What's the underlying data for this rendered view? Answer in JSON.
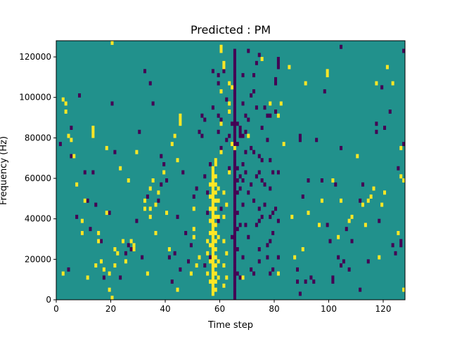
{
  "chart_data": {
    "type": "heatmap",
    "title": "Predicted : PM",
    "xlabel": "Time step",
    "ylabel": "Frequency (Hz)",
    "xlim": [
      0,
      128
    ],
    "ylim": [
      0,
      128000
    ],
    "xticks": [
      0,
      20,
      40,
      60,
      80,
      100,
      120
    ],
    "yticks": [
      0,
      20000,
      40000,
      60000,
      80000,
      100000,
      120000
    ],
    "n_cols": 128,
    "n_rows": 64,
    "colormap": "viridis",
    "colors": {
      "background": "#21918c",
      "high": "#fde725",
      "low": "#440154"
    },
    "high_cells": [
      [
        57,
        1
      ],
      [
        57,
        2
      ],
      [
        57,
        3
      ],
      [
        57,
        4
      ],
      [
        57,
        5
      ],
      [
        57,
        6
      ],
      [
        57,
        7
      ],
      [
        57,
        8
      ],
      [
        57,
        9
      ],
      [
        57,
        10
      ],
      [
        57,
        11
      ],
      [
        57,
        12
      ],
      [
        57,
        13
      ],
      [
        57,
        14
      ],
      [
        57,
        15
      ],
      [
        57,
        16
      ],
      [
        57,
        17
      ],
      [
        57,
        18
      ],
      [
        57,
        19
      ],
      [
        57,
        20
      ],
      [
        57,
        21
      ],
      [
        57,
        22
      ],
      [
        57,
        23
      ],
      [
        57,
        24
      ],
      [
        57,
        25
      ],
      [
        57,
        26
      ],
      [
        57,
        27
      ],
      [
        57,
        28
      ],
      [
        57,
        29
      ],
      [
        57,
        30
      ],
      [
        57,
        31
      ],
      [
        57,
        32
      ],
      [
        58,
        2
      ],
      [
        58,
        4
      ],
      [
        58,
        6
      ],
      [
        58,
        8
      ],
      [
        58,
        10
      ],
      [
        58,
        12
      ],
      [
        58,
        14
      ],
      [
        58,
        16
      ],
      [
        58,
        18
      ],
      [
        58,
        20
      ],
      [
        58,
        22
      ],
      [
        58,
        24
      ],
      [
        58,
        26
      ],
      [
        58,
        28
      ],
      [
        58,
        30
      ],
      [
        58,
        33
      ],
      [
        58,
        34
      ],
      [
        56,
        4
      ],
      [
        56,
        9
      ],
      [
        56,
        13
      ],
      [
        56,
        16
      ],
      [
        56,
        19
      ],
      [
        56,
        22
      ],
      [
        56,
        25
      ],
      [
        56,
        28
      ],
      [
        55,
        6
      ],
      [
        55,
        11
      ],
      [
        55,
        14
      ],
      [
        59,
        5
      ],
      [
        59,
        9
      ],
      [
        59,
        15
      ],
      [
        59,
        20
      ],
      [
        59,
        24
      ],
      [
        59,
        27
      ],
      [
        61,
        3
      ],
      [
        61,
        8
      ],
      [
        61,
        14
      ],
      [
        61,
        20
      ],
      [
        61,
        26
      ],
      [
        62,
        5
      ],
      [
        62,
        11
      ],
      [
        62,
        23
      ],
      [
        63,
        46
      ],
      [
        63,
        48
      ],
      [
        60,
        36
      ],
      [
        60,
        43
      ],
      [
        60,
        51
      ],
      [
        64,
        38
      ],
      [
        64,
        52
      ],
      [
        63,
        53
      ],
      [
        2,
        6
      ],
      [
        2,
        49
      ],
      [
        3,
        46
      ],
      [
        3,
        48
      ],
      [
        4,
        40
      ],
      [
        5,
        39
      ],
      [
        6,
        35
      ],
      [
        7,
        28
      ],
      [
        9,
        16
      ],
      [
        9,
        19
      ],
      [
        10,
        24
      ],
      [
        11,
        5
      ],
      [
        13,
        40
      ],
      [
        13,
        41
      ],
      [
        13,
        42
      ],
      [
        14,
        8
      ],
      [
        15,
        14
      ],
      [
        15,
        16
      ],
      [
        16,
        9
      ],
      [
        17,
        7
      ],
      [
        18,
        21
      ],
      [
        18,
        37
      ],
      [
        19,
        2
      ],
      [
        19,
        6
      ],
      [
        20,
        0
      ],
      [
        20,
        63
      ],
      [
        21,
        8
      ],
      [
        21,
        12
      ],
      [
        22,
        11
      ],
      [
        23,
        32
      ],
      [
        24,
        14
      ],
      [
        25,
        9
      ],
      [
        26,
        29
      ],
      [
        27,
        14
      ],
      [
        28,
        12
      ],
      [
        28,
        13
      ],
      [
        29,
        36
      ],
      [
        32,
        22
      ],
      [
        32,
        24
      ],
      [
        33,
        6
      ],
      [
        34,
        20
      ],
      [
        34,
        22
      ],
      [
        34,
        27
      ],
      [
        35,
        29
      ],
      [
        36,
        16
      ],
      [
        36,
        23
      ],
      [
        37,
        26
      ],
      [
        39,
        31
      ],
      [
        40,
        21
      ],
      [
        41,
        12
      ],
      [
        42,
        38
      ],
      [
        43,
        40
      ],
      [
        44,
        2
      ],
      [
        44,
        34
      ],
      [
        45,
        43
      ],
      [
        45,
        44
      ],
      [
        45,
        45
      ],
      [
        49,
        6
      ],
      [
        50,
        15
      ],
      [
        50,
        17
      ],
      [
        50,
        22
      ],
      [
        51,
        8
      ],
      [
        52,
        10
      ],
      [
        60,
        61
      ],
      [
        60,
        62
      ],
      [
        61,
        57
      ],
      [
        61,
        58
      ],
      [
        63,
        31
      ],
      [
        65,
        37
      ],
      [
        68,
        5
      ],
      [
        70,
        40
      ],
      [
        75,
        59
      ],
      [
        78,
        48
      ],
      [
        81,
        45
      ],
      [
        81,
        6
      ],
      [
        82,
        48
      ],
      [
        83,
        38
      ],
      [
        85,
        57
      ],
      [
        86,
        20
      ],
      [
        87,
        10
      ],
      [
        90,
        12
      ],
      [
        91,
        53
      ],
      [
        92,
        21
      ],
      [
        96,
        18
      ],
      [
        97,
        24
      ],
      [
        99,
        55
      ],
      [
        99,
        56
      ],
      [
        101,
        29
      ],
      [
        103,
        15
      ],
      [
        104,
        24
      ],
      [
        107,
        19
      ],
      [
        108,
        20
      ],
      [
        110,
        35
      ],
      [
        112,
        23
      ],
      [
        113,
        18
      ],
      [
        114,
        24
      ],
      [
        115,
        25
      ],
      [
        116,
        27
      ],
      [
        117,
        53
      ],
      [
        118,
        10
      ],
      [
        119,
        23
      ],
      [
        120,
        26
      ],
      [
        121,
        57
      ],
      [
        123,
        53
      ],
      [
        127,
        29
      ],
      [
        127,
        2
      ],
      [
        126,
        37
      ],
      [
        126,
        30
      ],
      [
        125,
        16
      ]
    ],
    "low_cells": [
      [
        65,
        0
      ],
      [
        65,
        1
      ],
      [
        65,
        2
      ],
      [
        65,
        3
      ],
      [
        65,
        4
      ],
      [
        65,
        5
      ],
      [
        65,
        6
      ],
      [
        65,
        7
      ],
      [
        65,
        8
      ],
      [
        65,
        9
      ],
      [
        65,
        10
      ],
      [
        65,
        11
      ],
      [
        65,
        12
      ],
      [
        65,
        13
      ],
      [
        65,
        14
      ],
      [
        65,
        15
      ],
      [
        65,
        16
      ],
      [
        65,
        17
      ],
      [
        65,
        18
      ],
      [
        65,
        19
      ],
      [
        65,
        20
      ],
      [
        65,
        21
      ],
      [
        65,
        22
      ],
      [
        65,
        23
      ],
      [
        65,
        24
      ],
      [
        65,
        25
      ],
      [
        65,
        26
      ],
      [
        65,
        27
      ],
      [
        65,
        28
      ],
      [
        65,
        29
      ],
      [
        65,
        30
      ],
      [
        65,
        31
      ],
      [
        65,
        32
      ],
      [
        65,
        33
      ],
      [
        65,
        34
      ],
      [
        65,
        35
      ],
      [
        65,
        36
      ],
      [
        65,
        37
      ],
      [
        65,
        38
      ],
      [
        65,
        39
      ],
      [
        65,
        40
      ],
      [
        65,
        41
      ],
      [
        65,
        42
      ],
      [
        65,
        43
      ],
      [
        65,
        44
      ],
      [
        65,
        45
      ],
      [
        65,
        46
      ],
      [
        65,
        47
      ],
      [
        65,
        48
      ],
      [
        65,
        49
      ],
      [
        65,
        50
      ],
      [
        65,
        51
      ],
      [
        65,
        52
      ],
      [
        65,
        53
      ],
      [
        65,
        54
      ],
      [
        65,
        55
      ],
      [
        65,
        56
      ],
      [
        65,
        57
      ],
      [
        65,
        58
      ],
      [
        65,
        59
      ],
      [
        65,
        60
      ],
      [
        65,
        61
      ],
      [
        66,
        6
      ],
      [
        66,
        12
      ],
      [
        66,
        17
      ],
      [
        66,
        21
      ],
      [
        66,
        26
      ],
      [
        66,
        29
      ],
      [
        66,
        32
      ],
      [
        66,
        38
      ],
      [
        66,
        43
      ],
      [
        67,
        5
      ],
      [
        67,
        18
      ],
      [
        67,
        27
      ],
      [
        67,
        30
      ],
      [
        67,
        40
      ],
      [
        67,
        41
      ],
      [
        67,
        42
      ],
      [
        68,
        10
      ],
      [
        68,
        23
      ],
      [
        68,
        29
      ],
      [
        68,
        33
      ],
      [
        68,
        40
      ],
      [
        68,
        48
      ],
      [
        68,
        55
      ],
      [
        69,
        18
      ],
      [
        69,
        31
      ],
      [
        69,
        36
      ],
      [
        69,
        41
      ],
      [
        69,
        45
      ],
      [
        70,
        15
      ],
      [
        70,
        26
      ],
      [
        70,
        44
      ],
      [
        70,
        61
      ],
      [
        71,
        7
      ],
      [
        71,
        28
      ],
      [
        71,
        37
      ],
      [
        71,
        50
      ],
      [
        72,
        6
      ],
      [
        72,
        24
      ],
      [
        72,
        36
      ],
      [
        72,
        51
      ],
      [
        72,
        55
      ],
      [
        73,
        18
      ],
      [
        73,
        30
      ],
      [
        73,
        47
      ],
      [
        73,
        58
      ],
      [
        74,
        9
      ],
      [
        74,
        12
      ],
      [
        74,
        19
      ],
      [
        74,
        22
      ],
      [
        74,
        31
      ],
      [
        74,
        35
      ],
      [
        74,
        60
      ],
      [
        75,
        20
      ],
      [
        75,
        29
      ],
      [
        75,
        34
      ],
      [
        75,
        42
      ],
      [
        76,
        23
      ],
      [
        76,
        28
      ],
      [
        76,
        47
      ],
      [
        77,
        10
      ],
      [
        77,
        13
      ],
      [
        77,
        39
      ],
      [
        77,
        45
      ],
      [
        78,
        6
      ],
      [
        78,
        14
      ],
      [
        78,
        20
      ],
      [
        78,
        27
      ],
      [
        78,
        34
      ],
      [
        78,
        45
      ],
      [
        79,
        7
      ],
      [
        79,
        16
      ],
      [
        79,
        21
      ],
      [
        79,
        31
      ],
      [
        80,
        22
      ],
      [
        80,
        46
      ],
      [
        80,
        53
      ],
      [
        80,
        54
      ],
      [
        81,
        10
      ],
      [
        81,
        19
      ],
      [
        81,
        31
      ],
      [
        81,
        57
      ],
      [
        81,
        58
      ],
      [
        81,
        59
      ],
      [
        59,
        19
      ],
      [
        59,
        41
      ],
      [
        59,
        45
      ],
      [
        59,
        53
      ],
      [
        59,
        55
      ],
      [
        60,
        22
      ],
      [
        60,
        37
      ],
      [
        60,
        44
      ],
      [
        61,
        56
      ],
      [
        62,
        49
      ],
      [
        62,
        39
      ],
      [
        63,
        40
      ],
      [
        63,
        32
      ],
      [
        64,
        15
      ],
      [
        64,
        43
      ],
      [
        57,
        47
      ],
      [
        57,
        56
      ],
      [
        56,
        10
      ],
      [
        56,
        33
      ],
      [
        55,
        21
      ],
      [
        55,
        26
      ],
      [
        54,
        44
      ],
      [
        54,
        8
      ],
      [
        53,
        40
      ],
      [
        88,
        4
      ],
      [
        88,
        7
      ],
      [
        89,
        1
      ],
      [
        89,
        39
      ],
      [
        89,
        40
      ],
      [
        90,
        25
      ],
      [
        91,
        4
      ],
      [
        92,
        29
      ],
      [
        93,
        5
      ],
      [
        94,
        4
      ],
      [
        95,
        39
      ],
      [
        97,
        29
      ],
      [
        98,
        51
      ],
      [
        99,
        18
      ],
      [
        100,
        14
      ],
      [
        101,
        4
      ],
      [
        101,
        5
      ],
      [
        102,
        28
      ],
      [
        103,
        10
      ],
      [
        104,
        8
      ],
      [
        104,
        37
      ],
      [
        104,
        62
      ],
      [
        105,
        9
      ],
      [
        106,
        17
      ],
      [
        107,
        7
      ],
      [
        108,
        14
      ],
      [
        111,
        24
      ],
      [
        111,
        2
      ],
      [
        112,
        28
      ],
      [
        114,
        9
      ],
      [
        116,
        27
      ],
      [
        117,
        43
      ],
      [
        117,
        41
      ],
      [
        118,
        19
      ],
      [
        119,
        52
      ],
      [
        120,
        42
      ],
      [
        122,
        46
      ],
      [
        123,
        13
      ],
      [
        124,
        11
      ],
      [
        125,
        32
      ],
      [
        126,
        14
      ],
      [
        126,
        13
      ],
      [
        127,
        38
      ],
      [
        127,
        61
      ],
      [
        1,
        38
      ],
      [
        4,
        7
      ],
      [
        5,
        35
      ],
      [
        5,
        42
      ],
      [
        7,
        20
      ],
      [
        8,
        50
      ],
      [
        9,
        16
      ],
      [
        10,
        31
      ],
      [
        11,
        24
      ],
      [
        12,
        17
      ],
      [
        13,
        31
      ],
      [
        14,
        23
      ],
      [
        16,
        14
      ],
      [
        17,
        5
      ],
      [
        19,
        21
      ],
      [
        20,
        48
      ],
      [
        21,
        36
      ],
      [
        23,
        5
      ],
      [
        25,
        11
      ],
      [
        26,
        13
      ],
      [
        27,
        12
      ],
      [
        29,
        19
      ],
      [
        30,
        41
      ],
      [
        31,
        10
      ],
      [
        32,
        56
      ],
      [
        33,
        25
      ],
      [
        34,
        53
      ],
      [
        35,
        48
      ],
      [
        37,
        24
      ],
      [
        38,
        28
      ],
      [
        38,
        35
      ],
      [
        39,
        33
      ],
      [
        40,
        29
      ],
      [
        41,
        10
      ],
      [
        42,
        4
      ],
      [
        43,
        11
      ],
      [
        44,
        20
      ],
      [
        45,
        7
      ],
      [
        46,
        31
      ],
      [
        47,
        16
      ],
      [
        48,
        9
      ],
      [
        49,
        13
      ],
      [
        50,
        25
      ],
      [
        51,
        27
      ],
      [
        52,
        41
      ],
      [
        53,
        45
      ],
      [
        54,
        30
      ]
    ]
  }
}
